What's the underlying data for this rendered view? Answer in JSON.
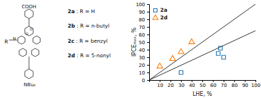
{
  "chart_data": {
    "type": "scatter",
    "xlabel": "LHE, %",
    "ylabel": "IPCEₘₐₓ, %",
    "xlim": [
      0,
      100
    ],
    "ylim": [
      0,
      100
    ],
    "xticks": [
      10,
      20,
      30,
      40,
      50,
      60,
      70,
      80,
      90,
      100
    ],
    "yticks": [
      0,
      10,
      20,
      30,
      40,
      50,
      60,
      70,
      80,
      90,
      100
    ],
    "grid": false,
    "legend": "upper left",
    "series": [
      {
        "name": "2a",
        "type": "scatter",
        "marker": "square",
        "x": [
          30,
          65,
          67,
          70
        ],
        "values": [
          10,
          35,
          42,
          30
        ]
      },
      {
        "name": "2d",
        "type": "scatter",
        "marker": "triangle",
        "x": [
          10,
          22,
          30,
          40
        ],
        "values": [
          18,
          28,
          37,
          50
        ]
      },
      {
        "type": "line",
        "line_style": "solid",
        "x": [
          0,
          100
        ],
        "values": [
          0,
          65
        ]
      },
      {
        "type": "line",
        "line_style": "solid",
        "x": [
          0,
          100
        ],
        "values": [
          0,
          100
        ]
      }
    ],
    "annotations": [
      "COOH",
      "N",
      "O",
      "O",
      "R",
      "NBu₂",
      "2a : R = H",
      "2b : R = n-butyl",
      "2c : R = benzyl",
      "2d : R = 5-nonyl"
    ]
  }
}
